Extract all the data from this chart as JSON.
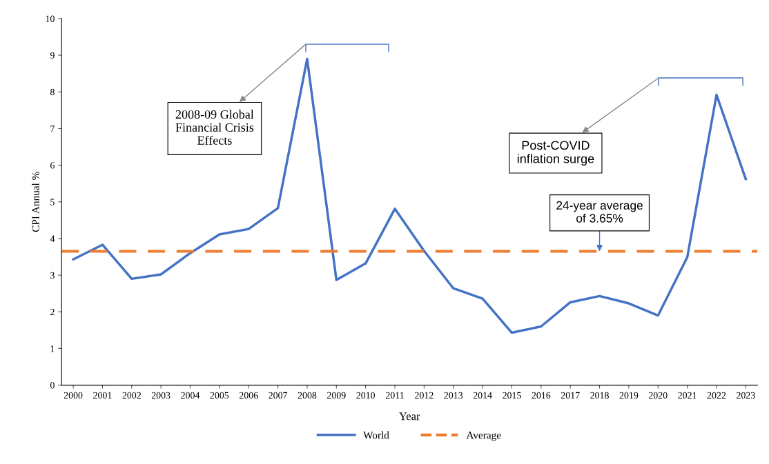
{
  "chart_data": {
    "type": "line",
    "xlabel": "Year",
    "ylabel": "CPI Annual %",
    "categories": [
      "2000",
      "2001",
      "2002",
      "2003",
      "2004",
      "2005",
      "2006",
      "2007",
      "2008",
      "2009",
      "2010",
      "2011",
      "2012",
      "2013",
      "2014",
      "2015",
      "2016",
      "2017",
      "2018",
      "2019",
      "2020",
      "2021",
      "2022",
      "2023"
    ],
    "series": [
      {
        "name": "World",
        "color": "#4472c4",
        "values": [
          3.43,
          3.83,
          2.9,
          3.02,
          3.6,
          4.11,
          4.26,
          4.83,
          8.9,
          2.87,
          3.32,
          4.81,
          3.66,
          2.64,
          2.36,
          1.43,
          1.6,
          2.26,
          2.43,
          2.23,
          1.9,
          3.49,
          7.92,
          5.62
        ]
      }
    ],
    "ref_lines": [
      {
        "axis": "y",
        "value": 3.65,
        "label": "Average",
        "color": "#ed7d31",
        "line_style": "dashed"
      }
    ],
    "annotations": [
      "2008-09 Global\nFinancial Crisis\nEffects",
      "Post-COVID\ninflation surge",
      {
        "text": "24-year average\nof 3.65%",
        "x": "2018",
        "y": 3.65
      }
    ],
    "ylim": [
      0,
      10
    ],
    "yticks": [
      0,
      1,
      2,
      3,
      4,
      5,
      6,
      7,
      8,
      9,
      10
    ],
    "grid": false,
    "legend": "bottom",
    "marker": "none",
    "line_style": "solid"
  }
}
